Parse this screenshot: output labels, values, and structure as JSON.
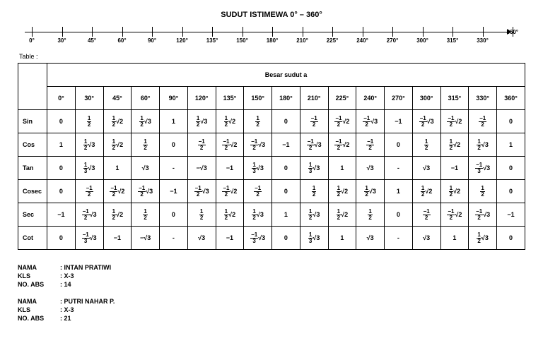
{
  "title": "SUDUT ISTIMEWA 0° – 360°",
  "table_label": "Table :",
  "header_span": "Besar sudut a",
  "angles": [
    "0°",
    "30°",
    "45°",
    "60°",
    "90°",
    "120°",
    "135°",
    "150°",
    "180°",
    "210°",
    "225°",
    "240°",
    "270°",
    "300°",
    "315°",
    "330°",
    "360°"
  ],
  "numberline_end": "360°",
  "rows": {
    "Sin": [
      "0",
      "½",
      "½√2",
      "½√3",
      "1",
      "½√3",
      "½√2",
      "½",
      "0",
      "-½",
      "-½√2",
      "-½√3",
      "-1",
      "-½√3",
      "-½√2",
      "-½",
      "0"
    ],
    "Cos": [
      "1",
      "½√3",
      "½√2",
      "½",
      "0",
      "-½",
      "-½√2",
      "-½√3",
      "-1",
      "-½√3",
      "-½√2",
      "-½",
      "0",
      "½",
      "½√2",
      "½√3",
      "1"
    ],
    "Tan": [
      "0",
      "⅓√3",
      "1",
      "√3",
      "-",
      "-√3",
      "-1",
      "⅓√3",
      "0",
      "⅓√3",
      "1",
      "√3",
      "-",
      "√3",
      "-1",
      "-⅓√3",
      "0"
    ],
    "Cosec": [
      "0",
      "-½",
      "-½√2",
      "-½√3",
      "-1",
      "-½√3",
      "-½√2",
      "-½",
      "0",
      "½",
      "½√2",
      "½√3",
      "1",
      "½√2",
      "½√2",
      "½",
      "0"
    ],
    "Sec": [
      "-1",
      "-½√3",
      "½√2",
      "½",
      "0",
      "½",
      "½√2",
      "½√3",
      "1",
      "½√3",
      "½√2",
      "½",
      "0",
      "-½",
      "-½√2",
      "-½√3",
      "-1"
    ],
    "Cot": [
      "0",
      "-⅓√3",
      "-1",
      "-√3",
      "-",
      "√3",
      "-1",
      "-⅓√3",
      "0",
      "⅓√3",
      "1",
      "√3",
      "-",
      "√3",
      "1",
      "½√3",
      "0"
    ]
  },
  "row_order": [
    "Sin",
    "Cos",
    "Tan",
    "Cosec",
    "Sec",
    "Cot"
  ],
  "students": [
    {
      "nama": "INTAN PRATIWI",
      "kls": "X-3",
      "abs": "14"
    },
    {
      "nama": "PUTRI NAHAR P.",
      "kls": "X-3",
      "abs": "21"
    }
  ],
  "meta_labels": {
    "nama": "NAMA",
    "kls": "KLS",
    "abs": "NO. ABS"
  }
}
